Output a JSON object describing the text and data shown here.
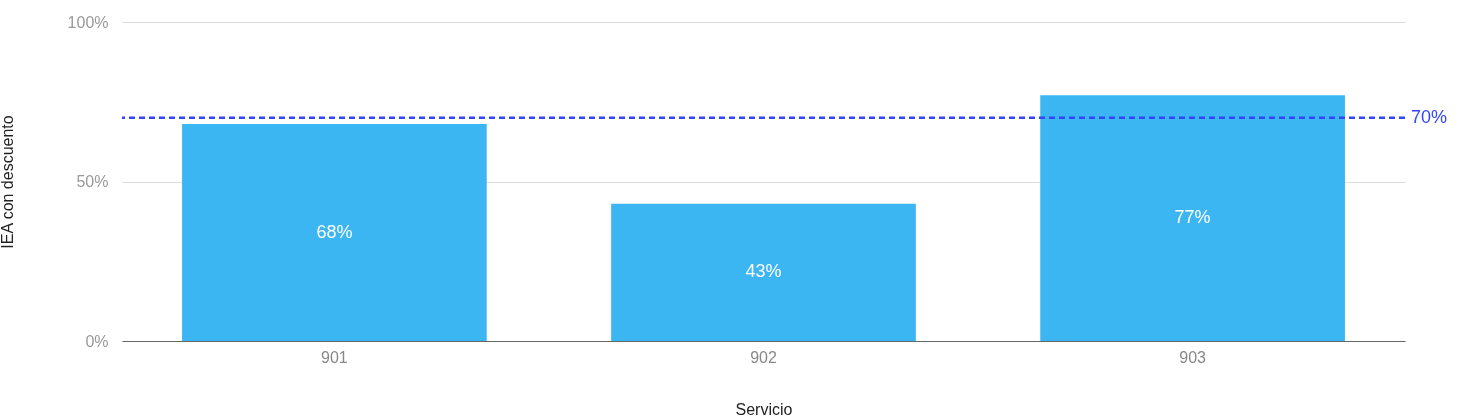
{
  "chart_data": {
    "type": "bar",
    "xlabel": "Servicio",
    "ylabel": "IEA con descuento",
    "categories": [
      "901",
      "902",
      "903"
    ],
    "values": [
      68,
      43,
      77
    ],
    "value_labels": [
      "68%",
      "43%",
      "77%"
    ],
    "color": "#3bb6f3",
    "ylim": [
      0,
      100
    ],
    "yticks": [
      {
        "value": 0,
        "label": "0%"
      },
      {
        "value": 50,
        "label": "50%"
      },
      {
        "value": 100,
        "label": "100%"
      }
    ],
    "grid": "y",
    "ref_lines": [
      {
        "axis": "y",
        "value": 70,
        "label": "70%",
        "color": "#3344ff",
        "line_style": "dashed"
      }
    ]
  }
}
